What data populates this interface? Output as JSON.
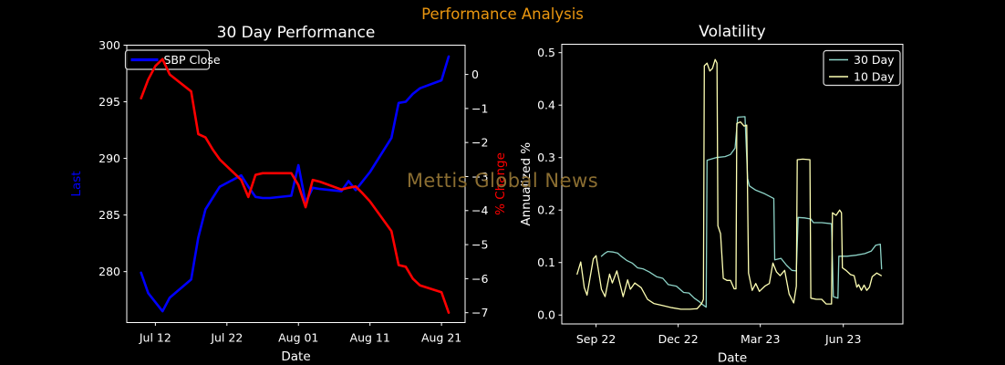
{
  "figure": {
    "suptitle": "Performance Analysis",
    "suptitle_color": "#eb9710",
    "watermark": "Mettis Global News",
    "watermark_color": "#8a6d31",
    "background_color": "#000000",
    "text_color": "#ffffff"
  },
  "chart_data": [
    {
      "id": "performance",
      "type": "line",
      "title": "30 Day Performance",
      "xlabel": "Date",
      "ylabel_left": "Last",
      "ylabel_left_color": "#0000ff",
      "ylabel_right": "% Change",
      "ylabel_right_color": "#ff0000",
      "x_unit": "days since 2023-07-08",
      "xlim": [
        0,
        47.3
      ],
      "ylim_left": [
        275.5,
        300
      ],
      "ylim_right": [
        -7.29,
        0.86
      ],
      "grid": false,
      "x_ticks": [
        {
          "label": "Jul 12",
          "x": 4
        },
        {
          "label": "Jul 22",
          "x": 14
        },
        {
          "label": "Aug 01",
          "x": 24
        },
        {
          "label": "Aug 11",
          "x": 34
        },
        {
          "label": "Aug 21",
          "x": 44
        }
      ],
      "y_ticks_left": [
        {
          "label": "300",
          "v": 300
        },
        {
          "label": "295",
          "v": 295
        },
        {
          "label": "290",
          "v": 290
        },
        {
          "label": "285",
          "v": 285
        },
        {
          "label": "280",
          "v": 280
        }
      ],
      "y_ticks_right": [
        {
          "label": "0",
          "v": 0
        },
        {
          "label": "−1",
          "v": -1
        },
        {
          "label": "−2",
          "v": -2
        },
        {
          "label": "−3",
          "v": -3
        },
        {
          "label": "−4",
          "v": -4
        },
        {
          "label": "−5",
          "v": -5
        },
        {
          "label": "−6",
          "v": -6
        },
        {
          "label": "−7",
          "v": -7
        }
      ],
      "legend": {
        "position": "upper-left",
        "entries": [
          {
            "label": "SBP Close",
            "color": "#0000ff"
          }
        ]
      },
      "series": [
        {
          "name": "SBP Close",
          "axis": "left",
          "color": "#0000ff",
          "width": 2.6,
          "points": [
            [
              2,
              279.9
            ],
            [
              3,
              278.1
            ],
            [
              4,
              277.3
            ],
            [
              5,
              276.5
            ],
            [
              6,
              277.7
            ],
            [
              9,
              279.3
            ],
            [
              10,
              283.0
            ],
            [
              11,
              285.5
            ],
            [
              12,
              286.5
            ],
            [
              13,
              287.5
            ],
            [
              16,
              288.5
            ],
            [
              17,
              287.5
            ],
            [
              18,
              286.6
            ],
            [
              19,
              286.5
            ],
            [
              20,
              286.5
            ],
            [
              23,
              286.7
            ],
            [
              24,
              289.4
            ],
            [
              25,
              286.1
            ],
            [
              26,
              287.4
            ],
            [
              27,
              287.3
            ],
            [
              30,
              287.1
            ],
            [
              31,
              288.0
            ],
            [
              32,
              287.2
            ],
            [
              33,
              288.0
            ],
            [
              34,
              288.8
            ],
            [
              37,
              291.8
            ],
            [
              38,
              294.9
            ],
            [
              39,
              295.0
            ],
            [
              40,
              295.7
            ],
            [
              41,
              296.2
            ],
            [
              44,
              296.9
            ],
            [
              45,
              299.0
            ]
          ]
        },
        {
          "name": "% Change",
          "axis": "right",
          "color": "#ff0000",
          "width": 2.6,
          "points": [
            [
              2,
              -0.7
            ],
            [
              3,
              -0.15
            ],
            [
              4,
              0.25
            ],
            [
              5,
              0.45
            ],
            [
              6,
              0.0
            ],
            [
              9,
              -0.5
            ],
            [
              10,
              -1.75
            ],
            [
              11,
              -1.85
            ],
            [
              12,
              -2.2
            ],
            [
              13,
              -2.5
            ],
            [
              16,
              -3.1
            ],
            [
              17,
              -3.6
            ],
            [
              18,
              -2.95
            ],
            [
              19,
              -2.9
            ],
            [
              20,
              -2.9
            ],
            [
              23,
              -2.9
            ],
            [
              24,
              -3.25
            ],
            [
              25,
              -3.9
            ],
            [
              26,
              -3.1
            ],
            [
              27,
              -3.15
            ],
            [
              30,
              -3.38
            ],
            [
              31,
              -3.33
            ],
            [
              32,
              -3.29
            ],
            [
              33,
              -3.5
            ],
            [
              34,
              -3.73
            ],
            [
              37,
              -4.6
            ],
            [
              38,
              -5.6
            ],
            [
              39,
              -5.65
            ],
            [
              40,
              -6.0
            ],
            [
              41,
              -6.2
            ],
            [
              44,
              -6.4
            ],
            [
              45,
              -7.0
            ]
          ]
        }
      ]
    },
    {
      "id": "volatility",
      "type": "line",
      "title": "Volatility",
      "xlabel": "Date",
      "ylabel_left": "Annualized %",
      "ylabel_left_color": "#ffffff",
      "x_unit": "days since 2022-09-01",
      "xlim": [
        -17,
        361
      ],
      "ylim_left": [
        -0.017,
        0.516
      ],
      "grid": false,
      "x_ticks": [
        {
          "label": "Sep 22",
          "x": 21
        },
        {
          "label": "Dec 22",
          "x": 112
        },
        {
          "label": "Mar 23",
          "x": 203
        },
        {
          "label": "Jun 23",
          "x": 295
        }
      ],
      "y_ticks_left": [
        {
          "label": "0.5",
          "v": 0.5
        },
        {
          "label": "0.4",
          "v": 0.4
        },
        {
          "label": "0.3",
          "v": 0.3
        },
        {
          "label": "0.2",
          "v": 0.2
        },
        {
          "label": "0.1",
          "v": 0.1
        },
        {
          "label": "0.0",
          "v": 0.0
        }
      ],
      "y_ticks_right": [],
      "legend": {
        "position": "upper-right",
        "entries": [
          {
            "label": "30 Day",
            "color": "#8dd3c7"
          },
          {
            "label": "10 Day",
            "color": "#feffb3"
          }
        ]
      },
      "series": [
        {
          "name": "30 Day",
          "axis": "left",
          "color": "#8dd3c7",
          "width": 1.3,
          "points": [
            [
              27,
              0.112
            ],
            [
              31,
              0.118
            ],
            [
              34,
              0.121
            ],
            [
              40,
              0.12
            ],
            [
              45,
              0.118
            ],
            [
              48,
              0.113
            ],
            [
              55,
              0.104
            ],
            [
              61,
              0.099
            ],
            [
              67,
              0.09
            ],
            [
              73,
              0.088
            ],
            [
              80,
              0.082
            ],
            [
              88,
              0.073
            ],
            [
              95,
              0.07
            ],
            [
              101,
              0.058
            ],
            [
              110,
              0.055
            ],
            [
              118,
              0.043
            ],
            [
              124,
              0.042
            ],
            [
              130,
              0.032
            ],
            [
              135,
              0.026
            ],
            [
              139,
              0.02
            ],
            [
              143,
              0.015
            ],
            [
              144,
              0.295
            ],
            [
              154,
              0.3
            ],
            [
              164,
              0.302
            ],
            [
              170,
              0.306
            ],
            [
              175,
              0.318
            ],
            [
              178,
              0.377
            ],
            [
              186,
              0.378
            ],
            [
              189,
              0.26
            ],
            [
              191,
              0.246
            ],
            [
              198,
              0.238
            ],
            [
              208,
              0.231
            ],
            [
              218,
              0.222
            ],
            [
              219,
              0.105
            ],
            [
              226,
              0.108
            ],
            [
              232,
              0.095
            ],
            [
              238,
              0.085
            ],
            [
              243,
              0.084
            ],
            [
              245,
              0.186
            ],
            [
              252,
              0.185
            ],
            [
              259,
              0.183
            ],
            [
              262,
              0.176
            ],
            [
              271,
              0.176
            ],
            [
              282,
              0.174
            ],
            [
              284,
              0.035
            ],
            [
              289,
              0.032
            ],
            [
              290,
              0.112
            ],
            [
              299,
              0.112
            ],
            [
              309,
              0.114
            ],
            [
              319,
              0.117
            ],
            [
              326,
              0.122
            ],
            [
              331,
              0.133
            ],
            [
              336,
              0.135
            ],
            [
              337.5,
              0.088
            ]
          ]
        },
        {
          "name": "10 Day",
          "axis": "left",
          "color": "#feffb3",
          "width": 1.3,
          "points": [
            [
              0,
              0.078
            ],
            [
              4,
              0.101
            ],
            [
              8,
              0.052
            ],
            [
              11,
              0.038
            ],
            [
              18,
              0.107
            ],
            [
              21,
              0.113
            ],
            [
              27,
              0.049
            ],
            [
              31,
              0.035
            ],
            [
              36,
              0.078
            ],
            [
              39,
              0.061
            ],
            [
              44,
              0.084
            ],
            [
              51,
              0.035
            ],
            [
              56,
              0.067
            ],
            [
              59,
              0.049
            ],
            [
              64,
              0.061
            ],
            [
              71,
              0.052
            ],
            [
              78,
              0.03
            ],
            [
              85,
              0.022
            ],
            [
              95,
              0.018
            ],
            [
              105,
              0.014
            ],
            [
              115,
              0.011
            ],
            [
              125,
              0.011
            ],
            [
              133,
              0.012
            ],
            [
              138,
              0.022
            ],
            [
              140,
              0.03
            ],
            [
              141,
              0.475
            ],
            [
              144,
              0.48
            ],
            [
              147,
              0.465
            ],
            [
              150,
              0.47
            ],
            [
              153,
              0.487
            ],
            [
              155,
              0.48
            ],
            [
              156,
              0.17
            ],
            [
              159,
              0.155
            ],
            [
              162,
              0.07
            ],
            [
              166,
              0.066
            ],
            [
              170,
              0.066
            ],
            [
              174,
              0.05
            ],
            [
              176,
              0.05
            ],
            [
              177,
              0.365
            ],
            [
              181,
              0.368
            ],
            [
              185,
              0.36
            ],
            [
              188,
              0.362
            ],
            [
              190,
              0.08
            ],
            [
              194,
              0.047
            ],
            [
              198,
              0.06
            ],
            [
              202,
              0.045
            ],
            [
              208,
              0.055
            ],
            [
              213,
              0.06
            ],
            [
              217,
              0.099
            ],
            [
              221,
              0.082
            ],
            [
              225,
              0.075
            ],
            [
              230,
              0.085
            ],
            [
              235,
              0.04
            ],
            [
              240,
              0.023
            ],
            [
              243,
              0.055
            ],
            [
              244,
              0.296
            ],
            [
              250,
              0.297
            ],
            [
              258,
              0.296
            ],
            [
              259,
              0.032
            ],
            [
              265,
              0.03
            ],
            [
              271,
              0.03
            ],
            [
              276,
              0.021
            ],
            [
              282,
              0.021
            ],
            [
              283,
              0.195
            ],
            [
              287,
              0.19
            ],
            [
              291,
              0.2
            ],
            [
              293,
              0.195
            ],
            [
              294,
              0.09
            ],
            [
              298,
              0.085
            ],
            [
              303,
              0.077
            ],
            [
              307,
              0.075
            ],
            [
              310,
              0.053
            ],
            [
              312,
              0.058
            ],
            [
              315,
              0.047
            ],
            [
              318,
              0.057
            ],
            [
              321,
              0.047
            ],
            [
              324,
              0.053
            ],
            [
              327,
              0.073
            ],
            [
              332,
              0.08
            ],
            [
              337,
              0.075
            ]
          ]
        }
      ]
    }
  ]
}
